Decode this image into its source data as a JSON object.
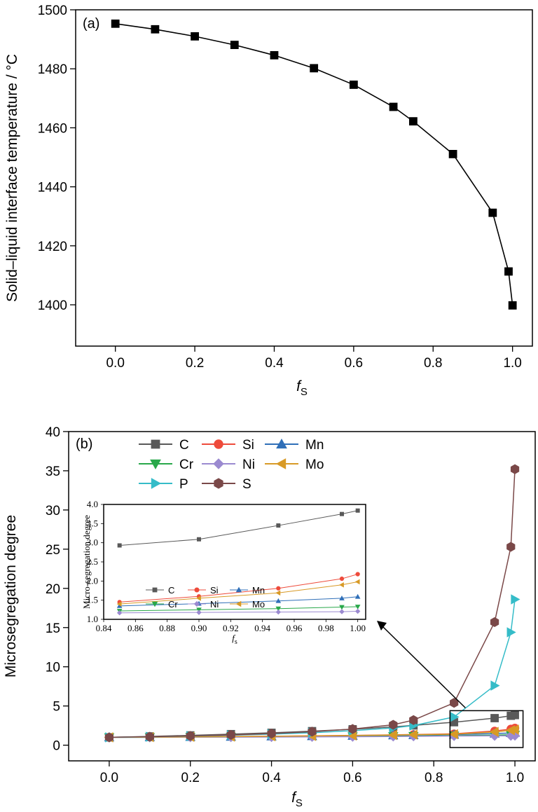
{
  "chart_data": [
    {
      "type": "line",
      "panel_label": "(a)",
      "xlabel": "f",
      "xlabel_sub": "S",
      "ylabel": "Solid–liquid interface temperature / °C",
      "xlim": [
        -0.1,
        1.05
      ],
      "ylim": [
        1386,
        1500
      ],
      "xticks": [
        0.0,
        0.2,
        0.4,
        0.6,
        0.8,
        1.0
      ],
      "xtick_labels": [
        "0.0",
        "0.2",
        "0.4",
        "0.6",
        "0.8",
        "1.0"
      ],
      "yticks": [
        1400,
        1420,
        1440,
        1460,
        1480,
        1500
      ],
      "ytick_labels": [
        "1400",
        "1420",
        "1440",
        "1460",
        "1480",
        "1500"
      ],
      "grid": false,
      "series": [
        {
          "color": "#000000",
          "marker": "square",
          "x": [
            0.0,
            0.1,
            0.2,
            0.3,
            0.4,
            0.5,
            0.6,
            0.7,
            0.75,
            0.85,
            0.95,
            0.99,
            1.0
          ],
          "y": [
            1495.3,
            1493.4,
            1491.0,
            1488.1,
            1484.6,
            1480.2,
            1474.6,
            1467.1,
            1462.2,
            1451.1,
            1431.2,
            1411.3,
            1399.8
          ]
        }
      ]
    },
    {
      "type": "line",
      "panel_label": "(b)",
      "xlabel": "f",
      "xlabel_sub": "S",
      "ylabel": "Microsegregation degree",
      "xlim": [
        -0.1,
        1.05
      ],
      "ylim": [
        -2,
        40
      ],
      "xticks": [
        0.0,
        0.2,
        0.4,
        0.6,
        0.8,
        1.0
      ],
      "xtick_labels": [
        "0.0",
        "0.2",
        "0.4",
        "0.6",
        "0.8",
        "1.0"
      ],
      "yticks": [
        0,
        5,
        10,
        15,
        20,
        25,
        30,
        35,
        40
      ],
      "ytick_labels": [
        "0",
        "5",
        "10",
        "15",
        "20",
        "25",
        "30",
        "35",
        "40"
      ],
      "grid": false,
      "legend_position": "top-left",
      "x": [
        0.0,
        0.1,
        0.2,
        0.3,
        0.4,
        0.5,
        0.6,
        0.7,
        0.75,
        0.85,
        0.95,
        0.99,
        1.0
      ],
      "series": [
        {
          "name": "C",
          "color": "#595959",
          "marker": "square",
          "values": [
            1.0,
            1.12,
            1.25,
            1.41,
            1.58,
            1.79,
            2.03,
            2.33,
            2.52,
            2.93,
            3.45,
            3.75,
            3.84
          ]
        },
        {
          "name": "Si",
          "color": "#ee4b3b",
          "marker": "circle",
          "values": [
            1.0,
            1.03,
            1.06,
            1.1,
            1.14,
            1.19,
            1.25,
            1.32,
            1.36,
            1.45,
            1.81,
            2.06,
            2.18
          ]
        },
        {
          "name": "Mn",
          "color": "#2f6fb8",
          "marker": "triangle-up",
          "values": [
            1.0,
            1.02,
            1.05,
            1.08,
            1.12,
            1.16,
            1.2,
            1.26,
            1.29,
            1.35,
            1.48,
            1.55,
            1.59
          ]
        },
        {
          "name": "Cr",
          "color": "#29a84a",
          "marker": "triangle-down",
          "values": [
            1.0,
            1.01,
            1.03,
            1.05,
            1.07,
            1.09,
            1.12,
            1.15,
            1.17,
            1.22,
            1.28,
            1.32,
            1.33
          ]
        },
        {
          "name": "Ni",
          "color": "#9b8ad0",
          "marker": "diamond",
          "values": [
            1.0,
            1.01,
            1.02,
            1.03,
            1.04,
            1.06,
            1.08,
            1.11,
            1.13,
            1.17,
            1.19,
            1.2,
            1.21
          ]
        },
        {
          "name": "Mo",
          "color": "#d89a26",
          "marker": "triangle-left",
          "values": [
            1.0,
            1.03,
            1.06,
            1.09,
            1.13,
            1.18,
            1.23,
            1.3,
            1.34,
            1.4,
            1.69,
            1.9,
            1.98
          ]
        },
        {
          "name": "P",
          "color": "#35bcc8",
          "marker": "triangle-right",
          "values": [
            1.0,
            1.07,
            1.16,
            1.27,
            1.41,
            1.59,
            1.85,
            2.2,
            2.5,
            3.6,
            7.6,
            14.4,
            18.6
          ]
        },
        {
          "name": "S",
          "color": "#7a4848",
          "marker": "hexagon",
          "values": [
            1.0,
            1.08,
            1.18,
            1.31,
            1.48,
            1.72,
            2.06,
            2.6,
            3.2,
            5.4,
            15.7,
            25.3,
            35.2
          ]
        }
      ],
      "inset": {
        "type": "line",
        "xlabel": "f",
        "xlabel_sub": "s",
        "ylabel": "Micro-segregation degree",
        "xlim": [
          0.84,
          1.005
        ],
        "ylim": [
          1.0,
          4.0
        ],
        "xticks": [
          0.84,
          0.86,
          0.88,
          0.9,
          0.92,
          0.94,
          0.96,
          0.98,
          1.0
        ],
        "xtick_labels": [
          "0.84",
          "0.86",
          "0.88",
          "0.90",
          "0.92",
          "0.94",
          "0.96",
          "0.98",
          "1.00"
        ],
        "yticks": [
          1.0,
          1.5,
          2.0,
          2.5,
          3.0,
          3.5,
          4.0
        ],
        "ytick_labels": [
          "1.0",
          "1.5",
          "2.0",
          "2.5",
          "3.0",
          "3.5",
          "4.0"
        ],
        "x": [
          0.85,
          0.9,
          0.95,
          0.99,
          1.0
        ],
        "series": [
          {
            "name": "C",
            "color": "#595959",
            "marker": "square",
            "values": [
              2.93,
              3.09,
              3.45,
              3.75,
              3.84
            ]
          },
          {
            "name": "Si",
            "color": "#ee4b3b",
            "marker": "circle",
            "values": [
              1.45,
              1.6,
              1.81,
              2.06,
              2.18
            ]
          },
          {
            "name": "Mn",
            "color": "#2f6fb8",
            "marker": "triangle-up",
            "values": [
              1.35,
              1.41,
              1.48,
              1.55,
              1.59
            ]
          },
          {
            "name": "Cr",
            "color": "#29a84a",
            "marker": "triangle-down",
            "values": [
              1.22,
              1.25,
              1.28,
              1.32,
              1.33
            ]
          },
          {
            "name": "Ni",
            "color": "#9b8ad0",
            "marker": "diamond",
            "values": [
              1.17,
              1.18,
              1.19,
              1.2,
              1.21
            ]
          },
          {
            "name": "Mo",
            "color": "#d89a26",
            "marker": "triangle-left",
            "values": [
              1.4,
              1.55,
              1.69,
              1.9,
              1.98
            ]
          }
        ]
      },
      "callout": {
        "from_x": [
          0.84,
          1.02
        ],
        "from_y": [
          -0.3,
          4.4
        ]
      }
    }
  ]
}
